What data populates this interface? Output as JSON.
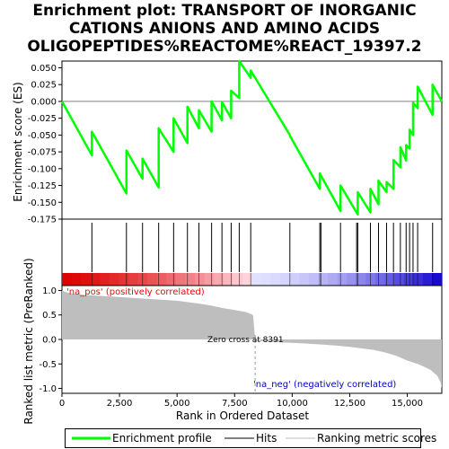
{
  "title_lines": [
    "Enrichment plot: TRANSPORT OF INORGANIC",
    "CATIONS ANIONS AND AMINO ACIDS",
    "OLIGOPEPTIDES%REACTOME%REACT_19397.2"
  ],
  "colors": {
    "profile": "#00ff00",
    "hits": "#000000",
    "metric_fill": "#bebebe",
    "pos_label": "#ff0000",
    "neg_label": "#0000cc",
    "zero_line": "#999999"
  },
  "chart_data": [
    {
      "type": "line",
      "name": "enrichment-profile",
      "ylabel": "Enrichment score (ES)",
      "xlim": [
        0,
        16500
      ],
      "ylim": [
        -0.175,
        0.06
      ],
      "yticks": [
        0.05,
        0.025,
        0.0,
        -0.025,
        -0.05,
        -0.075,
        -0.1,
        -0.125,
        -0.15,
        -0.175
      ],
      "ytick_labels": [
        "0.050",
        "0.025",
        "0.000",
        "-0.025",
        "-0.050",
        "-0.075",
        "-0.100",
        "-0.125",
        "-0.150",
        "-0.175"
      ],
      "series": [
        {
          "x": [
            0,
            1300,
            1300,
            2800,
            2800,
            3500,
            3500,
            4200,
            4200,
            4850,
            4850,
            5450,
            5450,
            5950,
            5950,
            6500,
            6500,
            6950,
            6950,
            7350,
            7350,
            7700,
            7700,
            8200,
            8200,
            9900,
            9900,
            11200,
            11200,
            12100,
            12100,
            12850,
            12850,
            13400,
            13400,
            13750,
            13750,
            14100,
            14100,
            14400,
            14400,
            14700,
            14700,
            14950,
            14950,
            15100,
            15100,
            15250,
            15250,
            15450,
            15450,
            16100,
            16100,
            16500
          ],
          "y": [
            0.0,
            -0.08,
            -0.045,
            -0.137,
            -0.073,
            -0.115,
            -0.085,
            -0.128,
            -0.04,
            -0.075,
            -0.025,
            -0.062,
            -0.008,
            -0.04,
            -0.013,
            -0.045,
            0.0,
            -0.028,
            -0.001,
            -0.025,
            0.016,
            0.005,
            0.06,
            0.035,
            0.046,
            -0.05,
            -0.051,
            -0.13,
            -0.107,
            -0.163,
            -0.125,
            -0.168,
            -0.135,
            -0.165,
            -0.13,
            -0.153,
            -0.118,
            -0.135,
            -0.12,
            -0.13,
            -0.087,
            -0.098,
            -0.068,
            -0.088,
            -0.065,
            -0.07,
            -0.042,
            -0.05,
            -0.002,
            -0.01,
            0.022,
            -0.02,
            0.025,
            0.0
          ]
        }
      ]
    },
    {
      "type": "scatter",
      "name": "hits",
      "x": [
        1300,
        2800,
        3500,
        4200,
        4850,
        5450,
        5950,
        6500,
        6950,
        7350,
        7700,
        8200,
        9900,
        11200,
        11250,
        12100,
        12800,
        12850,
        13400,
        13750,
        14100,
        14400,
        14700,
        14950,
        15100,
        15250,
        15450,
        16100
      ]
    },
    {
      "type": "area",
      "name": "ranked-list-metric",
      "ylabel": "Ranked list metric (PreRanked)",
      "xlabel": "Rank in Ordered Dataset",
      "xlim": [
        0,
        16500
      ],
      "ylim": [
        -1.1,
        1.1
      ],
      "xticks": [
        0,
        2500,
        5000,
        7500,
        10000,
        12500,
        15000
      ],
      "xtick_labels": [
        "0",
        "2,500",
        "5,000",
        "7,500",
        "10,000",
        "12,500",
        "15,000"
      ],
      "yticks": [
        1.0,
        0.5,
        0.0,
        -0.5,
        -1.0
      ],
      "ytick_labels": [
        "1.0",
        "0.5",
        "0.0",
        "-0.5",
        "-1.0"
      ],
      "x": [
        0,
        150,
        400,
        1000,
        2000,
        3000,
        4000,
        5000,
        6000,
        6500,
        7000,
        7500,
        8000,
        8300,
        8391,
        8500,
        9500,
        10500,
        11500,
        12500,
        13500,
        14000,
        14500,
        15000,
        15500,
        16000,
        16300,
        16450,
        16500
      ],
      "y": [
        1.0,
        0.97,
        0.94,
        0.91,
        0.88,
        0.85,
        0.82,
        0.79,
        0.73,
        0.69,
        0.64,
        0.6,
        0.56,
        0.5,
        0.0,
        -0.03,
        -0.06,
        -0.08,
        -0.11,
        -0.15,
        -0.21,
        -0.26,
        -0.33,
        -0.43,
        -0.51,
        -0.62,
        -0.74,
        -0.88,
        -1.0
      ],
      "zero_cross_rank": 8391,
      "annotations": {
        "zero_cross": "Zero cross at 8391",
        "pos": "'na_pos' (positively correlated)",
        "neg": "'na_neg' (negatively correlated)"
      }
    }
  ],
  "legend": {
    "items": [
      "Enrichment profile",
      "Hits",
      "Ranking metric scores"
    ]
  }
}
